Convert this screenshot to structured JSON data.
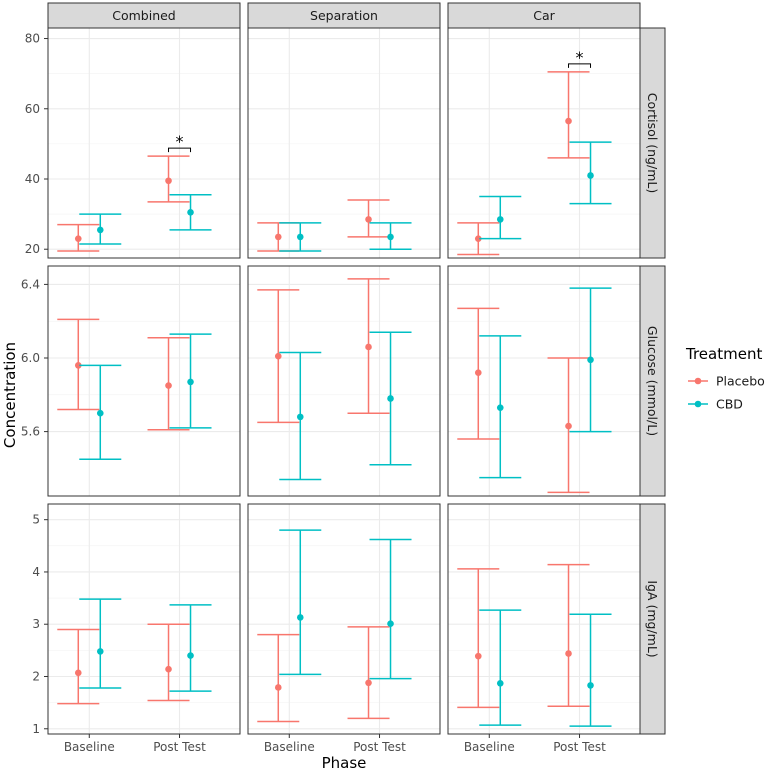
{
  "chart_data": {
    "type": "errorbar",
    "xlabel": "Phase",
    "ylabel": "Concentration",
    "x_categories": [
      "Baseline",
      "Post Test"
    ],
    "legend": {
      "title": "Treatment",
      "placement": "right",
      "entries": [
        {
          "name": "Placebo",
          "color": "#F8766D"
        },
        {
          "name": "CBD",
          "color": "#00BFC4"
        }
      ]
    },
    "columns": [
      "Combined",
      "Separation",
      "Car"
    ],
    "rows": [
      {
        "label": "Cortisol (ng/mL)",
        "ylim": [
          17.5,
          83
        ],
        "ticks": [
          20,
          40,
          60,
          80
        ],
        "tick_labels": [
          "20",
          "40",
          "60",
          "80"
        ]
      },
      {
        "label": "Glucose (mmol/L)",
        "ylim": [
          5.25,
          6.5
        ],
        "ticks": [
          5.6,
          6.0,
          6.4
        ],
        "tick_labels": [
          "5.6",
          "6.0",
          "6.4"
        ]
      },
      {
        "label": "IgA (mg/mL)",
        "ylim": [
          0.9,
          5.3
        ],
        "ticks": [
          1,
          2,
          3,
          4,
          5
        ],
        "tick_labels": [
          "1",
          "2",
          "3",
          "4",
          "5"
        ]
      }
    ],
    "grid": true,
    "panels": [
      {
        "row": 0,
        "col": 0,
        "series": [
          {
            "name": "Placebo",
            "points": [
              {
                "x": "Baseline",
                "mean": 23,
                "low": 19.5,
                "high": 27
              },
              {
                "x": "Post Test",
                "mean": 39.5,
                "low": 33.5,
                "high": 46.5
              }
            ]
          },
          {
            "name": "CBD",
            "points": [
              {
                "x": "Baseline",
                "mean": 25.5,
                "low": 21.5,
                "high": 30
              },
              {
                "x": "Post Test",
                "mean": 30.5,
                "low": 25.5,
                "high": 35.5
              }
            ]
          }
        ],
        "annotations": [
          {
            "text": "*",
            "x": "Post Test"
          }
        ]
      },
      {
        "row": 0,
        "col": 1,
        "series": [
          {
            "name": "Placebo",
            "points": [
              {
                "x": "Baseline",
                "mean": 23.5,
                "low": 19.5,
                "high": 27.5
              },
              {
                "x": "Post Test",
                "mean": 28.5,
                "low": 23.5,
                "high": 34
              }
            ]
          },
          {
            "name": "CBD",
            "points": [
              {
                "x": "Baseline",
                "mean": 23.5,
                "low": 19.5,
                "high": 27.5
              },
              {
                "x": "Post Test",
                "mean": 23.5,
                "low": 20,
                "high": 27.5
              }
            ]
          }
        ],
        "annotations": []
      },
      {
        "row": 0,
        "col": 2,
        "series": [
          {
            "name": "Placebo",
            "points": [
              {
                "x": "Baseline",
                "mean": 23,
                "low": 18.5,
                "high": 27.5
              },
              {
                "x": "Post Test",
                "mean": 56.5,
                "low": 46,
                "high": 70.5
              }
            ]
          },
          {
            "name": "CBD",
            "points": [
              {
                "x": "Baseline",
                "mean": 28.5,
                "low": 23,
                "high": 35
              },
              {
                "x": "Post Test",
                "mean": 41,
                "low": 33,
                "high": 50.5
              }
            ]
          }
        ],
        "annotations": [
          {
            "text": "*",
            "x": "Post Test"
          }
        ]
      },
      {
        "row": 1,
        "col": 0,
        "series": [
          {
            "name": "Placebo",
            "points": [
              {
                "x": "Baseline",
                "mean": 5.96,
                "low": 5.72,
                "high": 6.21
              },
              {
                "x": "Post Test",
                "mean": 5.85,
                "low": 5.61,
                "high": 6.11
              }
            ]
          },
          {
            "name": "CBD",
            "points": [
              {
                "x": "Baseline",
                "mean": 5.7,
                "low": 5.45,
                "high": 5.96
              },
              {
                "x": "Post Test",
                "mean": 5.87,
                "low": 5.62,
                "high": 6.13
              }
            ]
          }
        ],
        "annotations": []
      },
      {
        "row": 1,
        "col": 1,
        "series": [
          {
            "name": "Placebo",
            "points": [
              {
                "x": "Baseline",
                "mean": 6.01,
                "low": 5.65,
                "high": 6.37
              },
              {
                "x": "Post Test",
                "mean": 6.06,
                "low": 5.7,
                "high": 6.43
              }
            ]
          },
          {
            "name": "CBD",
            "points": [
              {
                "x": "Baseline",
                "mean": 5.68,
                "low": 5.34,
                "high": 6.03
              },
              {
                "x": "Post Test",
                "mean": 5.78,
                "low": 5.42,
                "high": 6.14
              }
            ]
          }
        ],
        "annotations": []
      },
      {
        "row": 1,
        "col": 2,
        "series": [
          {
            "name": "Placebo",
            "points": [
              {
                "x": "Baseline",
                "mean": 5.92,
                "low": 5.56,
                "high": 6.27
              },
              {
                "x": "Post Test",
                "mean": 5.63,
                "low": 5.27,
                "high": 6.0
              }
            ]
          },
          {
            "name": "CBD",
            "points": [
              {
                "x": "Baseline",
                "mean": 5.73,
                "low": 5.35,
                "high": 6.12
              },
              {
                "x": "Post Test",
                "mean": 5.99,
                "low": 5.6,
                "high": 6.38
              }
            ]
          }
        ],
        "annotations": []
      },
      {
        "row": 2,
        "col": 0,
        "series": [
          {
            "name": "Placebo",
            "points": [
              {
                "x": "Baseline",
                "mean": 2.07,
                "low": 1.48,
                "high": 2.9
              },
              {
                "x": "Post Test",
                "mean": 2.14,
                "low": 1.54,
                "high": 3.0
              }
            ]
          },
          {
            "name": "CBD",
            "points": [
              {
                "x": "Baseline",
                "mean": 2.48,
                "low": 1.78,
                "high": 3.48
              },
              {
                "x": "Post Test",
                "mean": 2.4,
                "low": 1.72,
                "high": 3.37
              }
            ]
          }
        ],
        "annotations": []
      },
      {
        "row": 2,
        "col": 1,
        "series": [
          {
            "name": "Placebo",
            "points": [
              {
                "x": "Baseline",
                "mean": 1.79,
                "low": 1.14,
                "high": 2.8
              },
              {
                "x": "Post Test",
                "mean": 1.88,
                "low": 1.2,
                "high": 2.95
              }
            ]
          },
          {
            "name": "CBD",
            "points": [
              {
                "x": "Baseline",
                "mean": 3.13,
                "low": 2.04,
                "high": 4.8
              },
              {
                "x": "Post Test",
                "mean": 3.01,
                "low": 1.96,
                "high": 4.62
              }
            ]
          }
        ],
        "annotations": []
      },
      {
        "row": 2,
        "col": 2,
        "series": [
          {
            "name": "Placebo",
            "points": [
              {
                "x": "Baseline",
                "mean": 2.39,
                "low": 1.41,
                "high": 4.06
              },
              {
                "x": "Post Test",
                "mean": 2.44,
                "low": 1.43,
                "high": 4.14
              }
            ]
          },
          {
            "name": "CBD",
            "points": [
              {
                "x": "Baseline",
                "mean": 1.87,
                "low": 1.07,
                "high": 3.27
              },
              {
                "x": "Post Test",
                "mean": 1.83,
                "low": 1.05,
                "high": 3.19
              }
            ]
          }
        ],
        "annotations": []
      }
    ]
  }
}
